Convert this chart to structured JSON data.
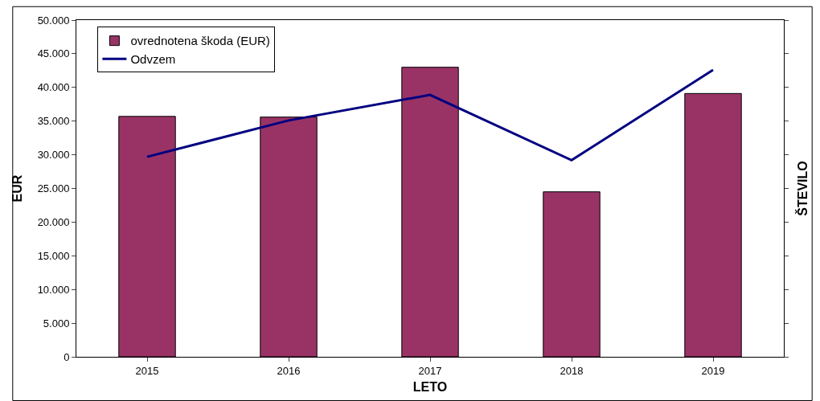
{
  "chart_data": {
    "type": "bar",
    "xlabel": "LETO",
    "ylabel": "EUR",
    "y2label": "ŠTEVILO",
    "categories": [
      "2015",
      "2016",
      "2017",
      "2018",
      "2019"
    ],
    "series": [
      {
        "name": "ovrednotena škoda (EUR)",
        "color": "#993366",
        "values": [
          35700,
          35600,
          43000,
          24500,
          39100
        ]
      },
      {
        "name": "Odvzem",
        "type": "line",
        "color": "#000080",
        "marker": "none",
        "values": [
          29700,
          35100,
          38900,
          29200,
          42600
        ]
      }
    ],
    "ylim": [
      0,
      50000
    ],
    "yticks": [
      {
        "value": 0,
        "label": "0"
      },
      {
        "value": 5000,
        "label": "5.000"
      },
      {
        "value": 10000,
        "label": "10.000"
      },
      {
        "value": 15000,
        "label": "15.000"
      },
      {
        "value": 20000,
        "label": "20.000"
      },
      {
        "value": 25000,
        "label": "25.000"
      },
      {
        "value": 30000,
        "label": "30.000"
      },
      {
        "value": 35000,
        "label": "35.000"
      },
      {
        "value": 40000,
        "label": "40.000"
      },
      {
        "value": 45000,
        "label": "45.000"
      },
      {
        "value": 50000,
        "label": "50.000"
      }
    ],
    "legend": "top left"
  }
}
